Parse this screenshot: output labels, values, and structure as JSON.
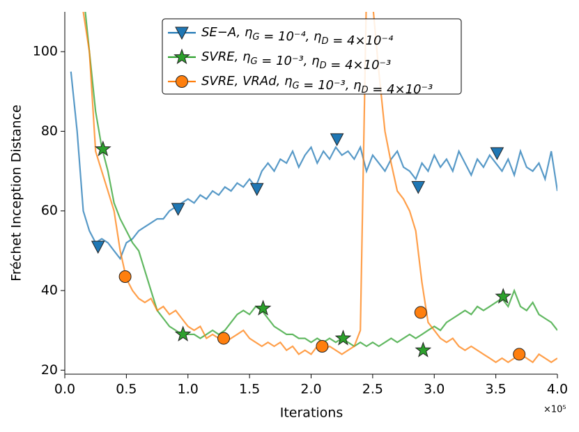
{
  "chart_data": {
    "type": "line",
    "xlabel": "Iterations",
    "ylabel": "Fréchet Inception Distance",
    "x_multiplier": "×10⁵",
    "xlim": [
      0,
      4
    ],
    "ylim": [
      19,
      110
    ],
    "xticks": [
      {
        "value": 0,
        "label": "0.0"
      },
      {
        "value": 0.5,
        "label": "0.5"
      },
      {
        "value": 1,
        "label": "1.0"
      },
      {
        "value": 1.5,
        "label": "1.5"
      },
      {
        "value": 2,
        "label": "2.0"
      },
      {
        "value": 2.5,
        "label": "2.5"
      },
      {
        "value": 3,
        "label": "3.0"
      },
      {
        "value": 3.5,
        "label": "3.5"
      },
      {
        "value": 4,
        "label": "4.0"
      }
    ],
    "yticks": [
      20,
      40,
      60,
      80,
      100
    ],
    "legend": "upper center",
    "x": [
      0,
      0.05,
      0.1,
      0.15,
      0.2,
      0.25,
      0.3,
      0.35,
      0.4,
      0.45,
      0.5,
      0.55,
      0.6,
      0.65,
      0.7,
      0.75,
      0.8,
      0.85,
      0.9,
      0.95,
      1,
      1.05,
      1.1,
      1.15,
      1.2,
      1.25,
      1.3,
      1.35,
      1.4,
      1.45,
      1.5,
      1.55,
      1.6,
      1.65,
      1.7,
      1.75,
      1.8,
      1.85,
      1.9,
      1.95,
      2,
      2.05,
      2.1,
      2.15,
      2.2,
      2.25,
      2.3,
      2.35,
      2.4,
      2.45,
      2.5,
      2.55,
      2.6,
      2.65,
      2.7,
      2.75,
      2.8,
      2.85,
      2.9,
      2.95,
      3,
      3.05,
      3.1,
      3.15,
      3.2,
      3.25,
      3.3,
      3.35,
      3.4,
      3.45,
      3.5,
      3.55,
      3.6,
      3.65,
      3.7,
      3.75,
      3.8,
      3.85,
      3.9,
      3.95,
      4
    ],
    "series": [
      {
        "name": "SE−A, ηG = 10⁻⁴, ηD = 4×10⁻⁴",
        "color": "#1f77b4",
        "marker": "triangle-down",
        "values": [
          null,
          95,
          80,
          60,
          55,
          52,
          53,
          52,
          50,
          48,
          52,
          53,
          55,
          56,
          57,
          58,
          58,
          60,
          61,
          62,
          63,
          62,
          64,
          63,
          65,
          64,
          66,
          65,
          67,
          66,
          68,
          66,
          70,
          72,
          70,
          73,
          72,
          75,
          71,
          74,
          76,
          72,
          75,
          73,
          76,
          74,
          75,
          73,
          76,
          70,
          74,
          72,
          70,
          73,
          75,
          71,
          70,
          68,
          72,
          70,
          74,
          71,
          73,
          70,
          75,
          72,
          69,
          73,
          71,
          74,
          72,
          70,
          73,
          69,
          75,
          71,
          70,
          72,
          68,
          75,
          65
        ],
        "markers": {
          "x": [
            0.27,
            0.92,
            1.56,
            2.21,
            2.87,
            3.51
          ],
          "y": [
            51,
            60.5,
            65.5,
            78,
            66,
            74.5
          ]
        }
      },
      {
        "name": "SVRE, ηG = 10⁻³, ηD = 4×10⁻³",
        "color": "#2ca02c",
        "marker": "star",
        "values": [
          null,
          null,
          null,
          115,
          100,
          85,
          76,
          70,
          62,
          58,
          55,
          52,
          50,
          45,
          40,
          35,
          33,
          31,
          30,
          29,
          29,
          29,
          28,
          29,
          30,
          29,
          30,
          32,
          34,
          35,
          34,
          36,
          35,
          33,
          31,
          30,
          29,
          29,
          28,
          28,
          27,
          28,
          27,
          28,
          27,
          28,
          27,
          26,
          27,
          26,
          27,
          26,
          27,
          28,
          27,
          28,
          29,
          28,
          29,
          30,
          31,
          30,
          32,
          33,
          34,
          35,
          34,
          36,
          35,
          36,
          37,
          38,
          36,
          40,
          36,
          35,
          37,
          34,
          33,
          32,
          30
        ],
        "markers": {
          "x": [
            0.31,
            0.96,
            1.61,
            2.26,
            2.91,
            3.56
          ],
          "y": [
            75.5,
            29,
            35.5,
            28,
            25,
            38.5
          ]
        }
      },
      {
        "name": "SVRE, VRAd, ηG = 10⁻³, ηD = 4×10⁻³",
        "color": "#ff7f0e",
        "marker": "circle",
        "values": [
          null,
          null,
          null,
          110,
          100,
          75,
          70,
          65,
          60,
          50,
          43,
          40,
          38,
          37,
          38,
          35,
          36,
          34,
          35,
          33,
          31,
          30,
          31,
          28,
          29,
          28,
          27,
          28,
          29,
          30,
          28,
          27,
          26,
          27,
          26,
          27,
          25,
          26,
          24,
          25,
          24,
          26,
          25,
          26,
          25,
          24,
          25,
          26,
          30,
          115,
          112,
          95,
          80,
          72,
          65,
          63,
          60,
          55,
          42,
          32,
          30,
          28,
          27,
          28,
          26,
          25,
          26,
          25,
          24,
          23,
          22,
          23,
          22,
          23,
          24,
          23,
          22,
          24,
          23,
          22,
          23
        ],
        "markers": {
          "x": [
            0.49,
            1.29,
            2.09,
            2.89,
            3.69
          ],
          "y": [
            43.5,
            28,
            26,
            34.5,
            24
          ]
        }
      }
    ]
  }
}
